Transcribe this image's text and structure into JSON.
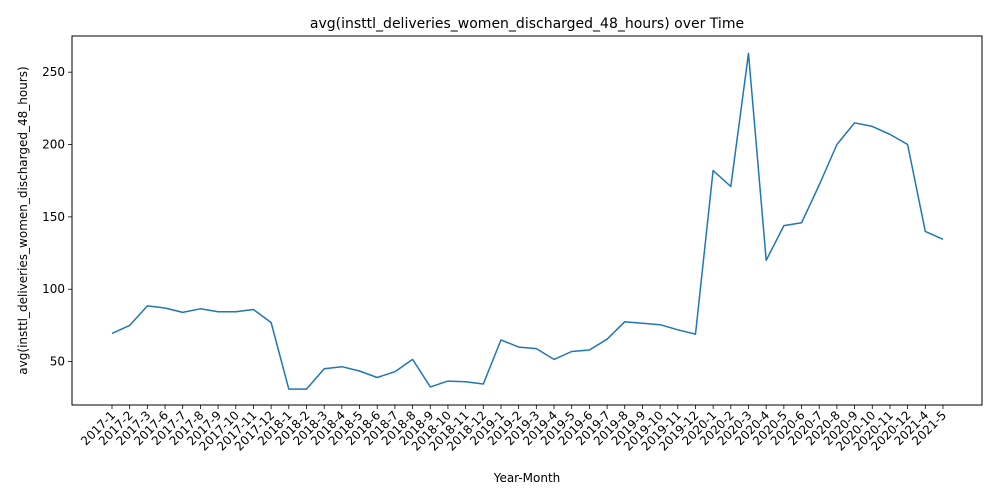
{
  "chart_data": {
    "type": "line",
    "title": "avg(insttl_deliveries_women_discharged_48_hours) over Time",
    "xlabel": "Year-Month",
    "ylabel": "avg(insttl_deliveries_women_discharged_48_hours)",
    "ylim": [
      20,
      275
    ],
    "yticks": [
      50,
      100,
      150,
      200,
      250
    ],
    "grid": false,
    "line_color": "#1f77b4",
    "categories": [
      "2017-1",
      "2017-2",
      "2017-3",
      "2017-6",
      "2017-7",
      "2017-8",
      "2017-9",
      "2017-10",
      "2017-11",
      "2017-12",
      "2018-1",
      "2018-2",
      "2018-3",
      "2018-4",
      "2018-5",
      "2018-6",
      "2018-7",
      "2018-8",
      "2018-9",
      "2018-10",
      "2018-11",
      "2018-12",
      "2019-1",
      "2019-2",
      "2019-3",
      "2019-4",
      "2019-5",
      "2019-6",
      "2019-7",
      "2019-8",
      "2019-9",
      "2019-10",
      "2019-11",
      "2019-12",
      "2020-1",
      "2020-2",
      "2020-3",
      "2020-4",
      "2020-5",
      "2020-6",
      "2020-7",
      "2020-8",
      "2020-9",
      "2020-10",
      "2020-11",
      "2020-12",
      "2021-4",
      "2021-5"
    ],
    "series": [
      {
        "values": [
          69.5,
          75,
          88.5,
          87,
          84,
          86.5,
          84.5,
          84.5,
          86,
          77,
          31,
          31,
          45,
          46.5,
          43.5,
          39,
          43,
          51.5,
          32.5,
          36.5,
          36,
          34.5,
          65,
          60,
          59,
          51.5,
          57,
          58,
          65.5,
          77.5,
          76.5,
          75.5,
          72,
          69,
          182,
          171,
          263,
          120,
          144,
          146,
          172,
          200,
          215,
          212.5,
          207,
          200,
          140,
          134.5
        ]
      }
    ]
  }
}
